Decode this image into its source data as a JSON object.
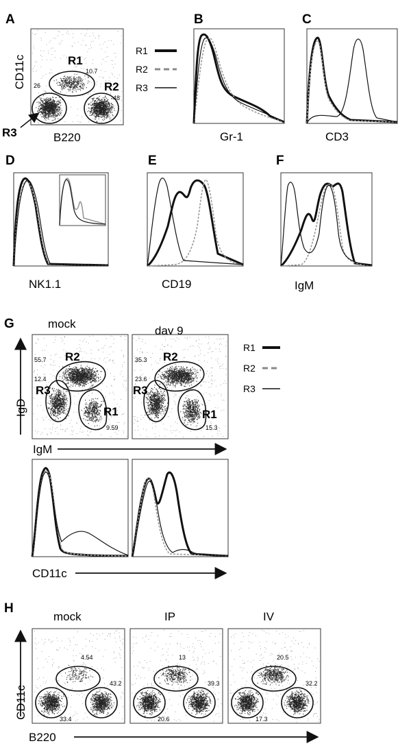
{
  "panels": {
    "A": {
      "label": "A",
      "ylabel": "CD11c",
      "xlabel": "B220",
      "gates": {
        "r1": "R1",
        "r2": "R2",
        "r3": "R3"
      },
      "percents": {
        "r1": "10.7",
        "r2": "48",
        "r3": "26"
      }
    },
    "legend_top": {
      "items": [
        {
          "label": "R1",
          "style": "thick-black"
        },
        {
          "label": "R2",
          "style": "dashed-gray"
        },
        {
          "label": "R3",
          "style": "thin-black"
        }
      ]
    },
    "B": {
      "label": "B",
      "xlabel": "Gr-1"
    },
    "C": {
      "label": "C",
      "xlabel": "CD3"
    },
    "D": {
      "label": "D",
      "xlabel": "NK1.1"
    },
    "E": {
      "label": "E",
      "xlabel": "CD19"
    },
    "F": {
      "label": "F",
      "xlabel": "IgM"
    },
    "G": {
      "label": "G",
      "titles": [
        "mock",
        "day 9"
      ],
      "ylabel": "IgD",
      "xlabel_top": "IgM",
      "xlabel_bottom": "CD11c",
      "gates": {
        "r1": "R1",
        "r2": "R2",
        "r3": "R3"
      },
      "mock_percents": {
        "r2": "55.7",
        "r3": "12.4",
        "r1": "9.59"
      },
      "day9_percents": {
        "r2": "35.3",
        "r3": "23.6",
        "r1": "15.3"
      },
      "legend": [
        {
          "label": "R1",
          "style": "thick-black"
        },
        {
          "label": "R2",
          "style": "dashed-gray"
        },
        {
          "label": "R3",
          "style": "thin-black"
        }
      ]
    },
    "H": {
      "label": "H",
      "titles": [
        "mock",
        "IP",
        "IV"
      ],
      "ylabel": "CD11c",
      "xlabel": "B220",
      "mock_percents": {
        "top": "4.54",
        "right": "43.2",
        "bottom": "33.4"
      },
      "ip_percents": {
        "top": "13",
        "right": "39.3",
        "bottom": "20.6"
      },
      "iv_percents": {
        "top": "20.5",
        "right": "32.2",
        "bottom": "17.3"
      }
    }
  },
  "colors": {
    "ink": "#111111",
    "gray_line": "#888888",
    "frame": "#333333"
  }
}
